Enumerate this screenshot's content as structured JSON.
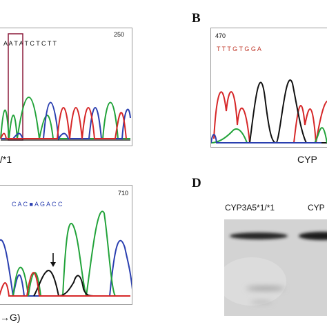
{
  "panels": {
    "A": {
      "position_label": "250",
      "bases": "A A T A T C T C T T",
      "caption": "/*1"
    },
    "B": {
      "letter": "B",
      "position_label": "470",
      "bases": "T T T G T G G A",
      "caption": "CYP"
    },
    "C": {
      "position_label": "710",
      "bases": "C A C ■ A G A C C",
      "caption": "→G)"
    },
    "D": {
      "letter": "D",
      "lanes": [
        "CYP3A5*1/*1",
        "CYP"
      ]
    }
  },
  "colors": {
    "trace_red": "#d62728",
    "trace_green": "#22a33a",
    "trace_blue": "#2a3fb0",
    "trace_black": "#111111",
    "highlight_box": "#8b1a3a"
  }
}
